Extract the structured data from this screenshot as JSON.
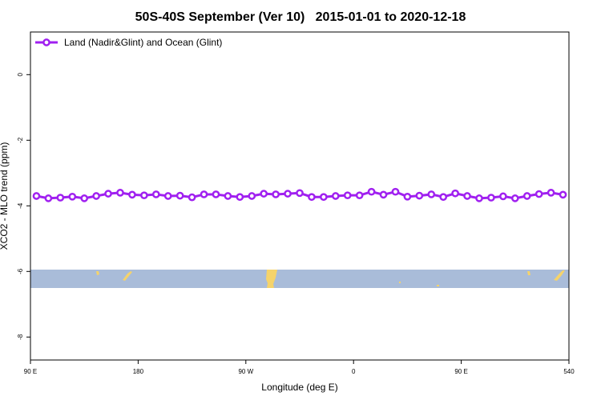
{
  "chart_data": {
    "type": "line",
    "title": "50S-40S September (Ver 10)   2015-01-01 to 2020-12-18",
    "xlabel": "Longitude (deg E)",
    "ylabel": "XCO2 - MLO trend (ppm)",
    "xlim": [
      90,
      540
    ],
    "ylim": [
      -8.7,
      1.3
    ],
    "xticks": [
      {
        "value": 90,
        "label": "90 E"
      },
      180,
      {
        "value": 270,
        "label": "90 W"
      },
      {
        "value": 360,
        "label": "0"
      },
      {
        "value": 450,
        "label": "90 E"
      },
      540
    ],
    "yticks": [
      0,
      -2,
      -4,
      -6,
      -8
    ],
    "legend": "top-left",
    "x": [
      95,
      105,
      115,
      125,
      135,
      145,
      155,
      165,
      175,
      185,
      195,
      205,
      215,
      225,
      235,
      245,
      255,
      265,
      275,
      285,
      295,
      305,
      315,
      325,
      335,
      345,
      355,
      365,
      375,
      385,
      395,
      405,
      415,
      425,
      435,
      445,
      455,
      465,
      475,
      485,
      495,
      505,
      515,
      525,
      535
    ],
    "series": [
      {
        "name": "Land (Nadir&Glint) and Ocean (Glint)",
        "color": "#a020f0",
        "values": [
          -3.7,
          -3.77,
          -3.75,
          -3.72,
          -3.77,
          -3.7,
          -3.63,
          -3.6,
          -3.66,
          -3.68,
          -3.65,
          -3.7,
          -3.69,
          -3.74,
          -3.65,
          -3.65,
          -3.7,
          -3.73,
          -3.7,
          -3.63,
          -3.65,
          -3.63,
          -3.61,
          -3.73,
          -3.73,
          -3.7,
          -3.68,
          -3.68,
          -3.57,
          -3.66,
          -3.57,
          -3.72,
          -3.69,
          -3.65,
          -3.73,
          -3.62,
          -3.7,
          -3.77,
          -3.75,
          -3.71,
          -3.77,
          -3.7,
          -3.64,
          -3.6,
          -3.66
        ]
      }
    ]
  }
}
